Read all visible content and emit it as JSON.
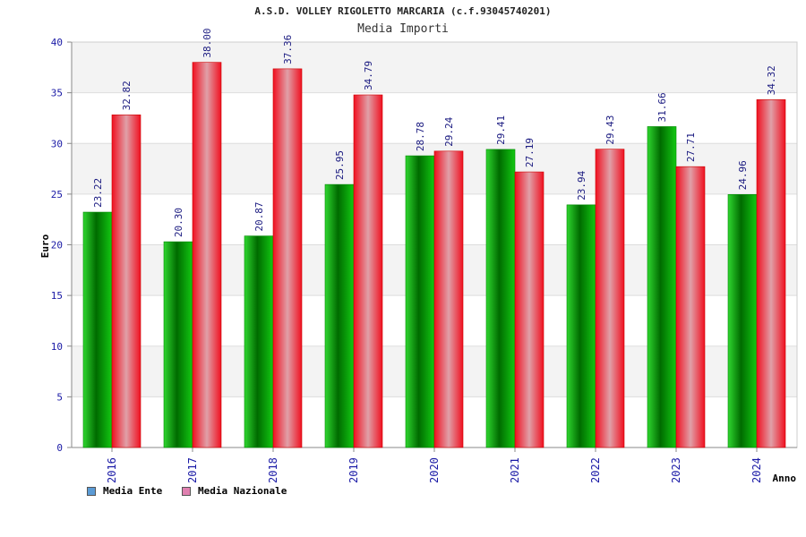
{
  "header": {
    "title": "A.S.D. VOLLEY RIGOLETTO MARCARIA (c.f.93045740201)",
    "subtitle": "Media Importi"
  },
  "legend": {
    "ente_label": "Media Ente",
    "nazionale_label": "Media Nazionale",
    "ente_color": "#5b9bd5",
    "nazionale_color": "#e080b0"
  },
  "chart_data": {
    "type": "bar",
    "title": "Media Importi",
    "xlabel": "Anno",
    "ylabel": "Euro",
    "ylim": [
      0,
      40
    ],
    "yticks": [
      0,
      5,
      10,
      15,
      20,
      25,
      30,
      35,
      40
    ],
    "categories": [
      "2016",
      "2017",
      "2018",
      "2019",
      "2020",
      "2021",
      "2022",
      "2023",
      "2024"
    ],
    "series": [
      {
        "name": "Media Ente",
        "color": "#00aa00",
        "values": [
          23.22,
          20.3,
          20.87,
          25.95,
          28.78,
          29.41,
          23.94,
          31.66,
          24.96
        ],
        "labels": [
          "23.22",
          "20.30",
          "20.87",
          "25.95",
          "28.78",
          "29.41",
          "23.94",
          "31.66",
          "24.96"
        ]
      },
      {
        "name": "Media Nazionale",
        "color": "#ee1122",
        "values": [
          32.82,
          38.0,
          37.36,
          34.79,
          29.24,
          27.19,
          29.43,
          27.71,
          34.32
        ],
        "labels": [
          "32.82",
          "38.00",
          "37.36",
          "34.79",
          "29.24",
          "27.19",
          "29.43",
          "27.71",
          "34.32"
        ]
      }
    ],
    "grid": true,
    "legend_position": "bottom-left"
  }
}
